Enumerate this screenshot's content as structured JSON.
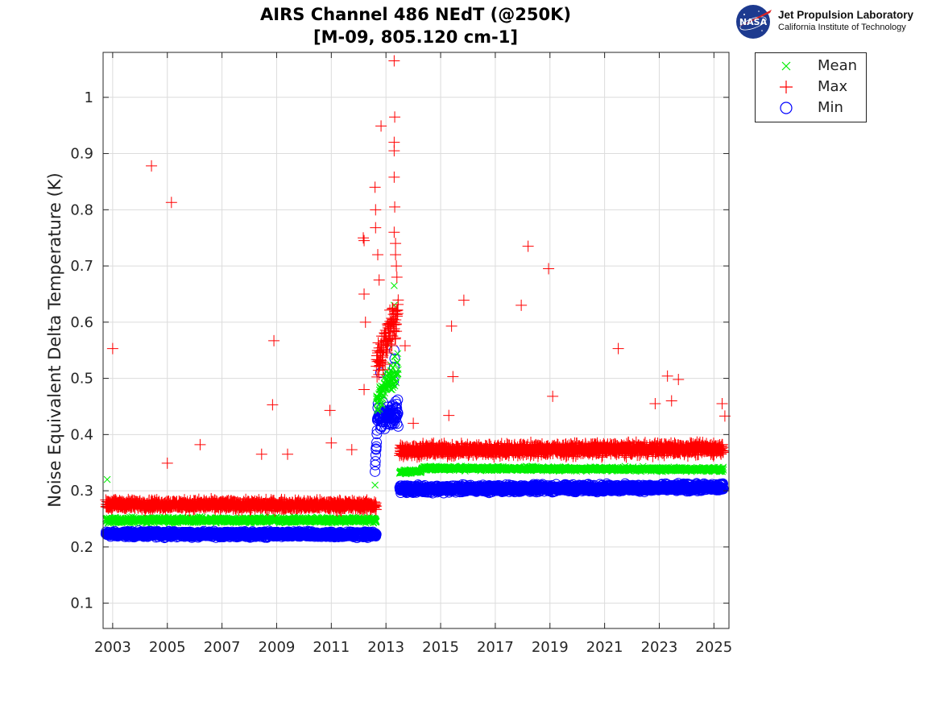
{
  "header": {
    "title_line1": "AIRS Channel 486 NEdT (@250K)",
    "title_line2": "[M-09, 805.120 cm-1]"
  },
  "logo": {
    "nasa_text": "NASA",
    "line1": "Jet Propulsion Laboratory",
    "line2": "California Institute of Technology"
  },
  "chart_data": {
    "type": "scatter",
    "title": "AIRS Channel 486 NEdT (@250K) [M-09, 805.120 cm-1]",
    "xlabel": "",
    "ylabel": "Noise Equivalent Delta Temperature (K)",
    "xlim": [
      2002.65,
      2025.55
    ],
    "ylim": [
      0.055,
      1.08
    ],
    "x_ticks": [
      "2003",
      "2005",
      "2007",
      "2009",
      "2011",
      "2013",
      "2015",
      "2017",
      "2019",
      "2021",
      "2023",
      "2025"
    ],
    "y_ticks": [
      "0.1",
      "0.2",
      "0.3",
      "0.4",
      "0.5",
      "0.6",
      "0.7",
      "0.8",
      "0.9",
      "1"
    ],
    "grid": true,
    "legend_position": "outside-top-right",
    "series": [
      {
        "name": "Mean",
        "marker": "x",
        "color": "#00ee00",
        "segments": [
          {
            "x0": 2002.75,
            "x1": 2012.65,
            "y0": 0.248,
            "y1": 0.248,
            "spread": 0.007
          },
          {
            "x0": 2012.65,
            "x1": 2013.45,
            "y0": 0.46,
            "y1": 0.52,
            "spread": 0.04
          },
          {
            "x0": 2013.5,
            "x1": 2014.3,
            "y0": 0.333,
            "y1": 0.335,
            "spread": 0.004
          },
          {
            "x0": 2014.3,
            "x1": 2025.35,
            "y0": 0.34,
            "y1": 0.338,
            "spread": 0.005
          }
        ],
        "outliers": [
          [
            2002.8,
            0.32
          ],
          [
            2012.6,
            0.31
          ],
          [
            2013.3,
            0.63
          ],
          [
            2013.3,
            0.665
          ],
          [
            2013.1,
            0.56
          ]
        ]
      },
      {
        "name": "Max",
        "marker": "+",
        "color": "#ff0000",
        "segments": [
          {
            "x0": 2002.75,
            "x1": 2012.65,
            "y0": 0.276,
            "y1": 0.274,
            "spread": 0.012
          },
          {
            "x0": 2012.65,
            "x1": 2013.45,
            "y0": 0.52,
            "y1": 0.62,
            "spread": 0.06
          },
          {
            "x0": 2013.5,
            "x1": 2025.35,
            "y0": 0.372,
            "y1": 0.375,
            "spread": 0.015
          }
        ],
        "outliers": [
          [
            2003.0,
            0.553
          ],
          [
            2004.42,
            0.878
          ],
          [
            2005.15,
            0.813
          ],
          [
            2005.0,
            0.349
          ],
          [
            2006.2,
            0.382
          ],
          [
            2008.45,
            0.365
          ],
          [
            2008.85,
            0.453
          ],
          [
            2008.9,
            0.567
          ],
          [
            2009.4,
            0.365
          ],
          [
            2010.95,
            0.443
          ],
          [
            2011.0,
            0.385
          ],
          [
            2011.75,
            0.373
          ],
          [
            2012.17,
            0.75
          ],
          [
            2012.2,
            0.745
          ],
          [
            2012.2,
            0.65
          ],
          [
            2012.25,
            0.6
          ],
          [
            2012.2,
            0.48
          ],
          [
            2012.6,
            0.84
          ],
          [
            2012.62,
            0.8
          ],
          [
            2012.62,
            0.768
          ],
          [
            2012.7,
            0.72
          ],
          [
            2012.75,
            0.675
          ],
          [
            2012.82,
            0.949
          ],
          [
            2013.3,
            1.065
          ],
          [
            2013.32,
            0.965
          ],
          [
            2013.3,
            0.92
          ],
          [
            2013.3,
            0.905
          ],
          [
            2013.3,
            0.858
          ],
          [
            2013.32,
            0.805
          ],
          [
            2013.3,
            0.76
          ],
          [
            2013.35,
            0.74
          ],
          [
            2013.35,
            0.72
          ],
          [
            2013.38,
            0.7
          ],
          [
            2013.4,
            0.68
          ],
          [
            2013.7,
            0.558
          ],
          [
            2014.0,
            0.42
          ],
          [
            2015.3,
            0.434
          ],
          [
            2015.4,
            0.593
          ],
          [
            2015.45,
            0.503
          ],
          [
            2015.85,
            0.639
          ],
          [
            2017.95,
            0.63
          ],
          [
            2018.2,
            0.735
          ],
          [
            2018.95,
            0.695
          ],
          [
            2019.1,
            0.468
          ],
          [
            2021.5,
            0.553
          ],
          [
            2022.85,
            0.455
          ],
          [
            2023.3,
            0.504
          ],
          [
            2023.45,
            0.46
          ],
          [
            2023.7,
            0.498
          ],
          [
            2025.3,
            0.455
          ],
          [
            2025.4,
            0.433
          ]
        ]
      },
      {
        "name": "Min",
        "marker": "o",
        "color": "#0000ff",
        "segments": [
          {
            "x0": 2002.75,
            "x1": 2012.65,
            "y0": 0.223,
            "y1": 0.222,
            "spread": 0.007
          },
          {
            "x0": 2012.6,
            "x1": 2012.7,
            "y0": 0.33,
            "y1": 0.44,
            "spread": 0.02
          },
          {
            "x0": 2012.7,
            "x1": 2013.45,
            "y0": 0.43,
            "y1": 0.44,
            "spread": 0.03
          },
          {
            "x0": 2013.5,
            "x1": 2025.35,
            "y0": 0.303,
            "y1": 0.306,
            "spread": 0.009
          }
        ],
        "outliers": [
          [
            2012.8,
            0.51
          ],
          [
            2013.3,
            0.55
          ],
          [
            2013.32,
            0.535
          ],
          [
            2013.3,
            0.52
          ],
          [
            2013.28,
            0.495
          ]
        ]
      }
    ]
  }
}
